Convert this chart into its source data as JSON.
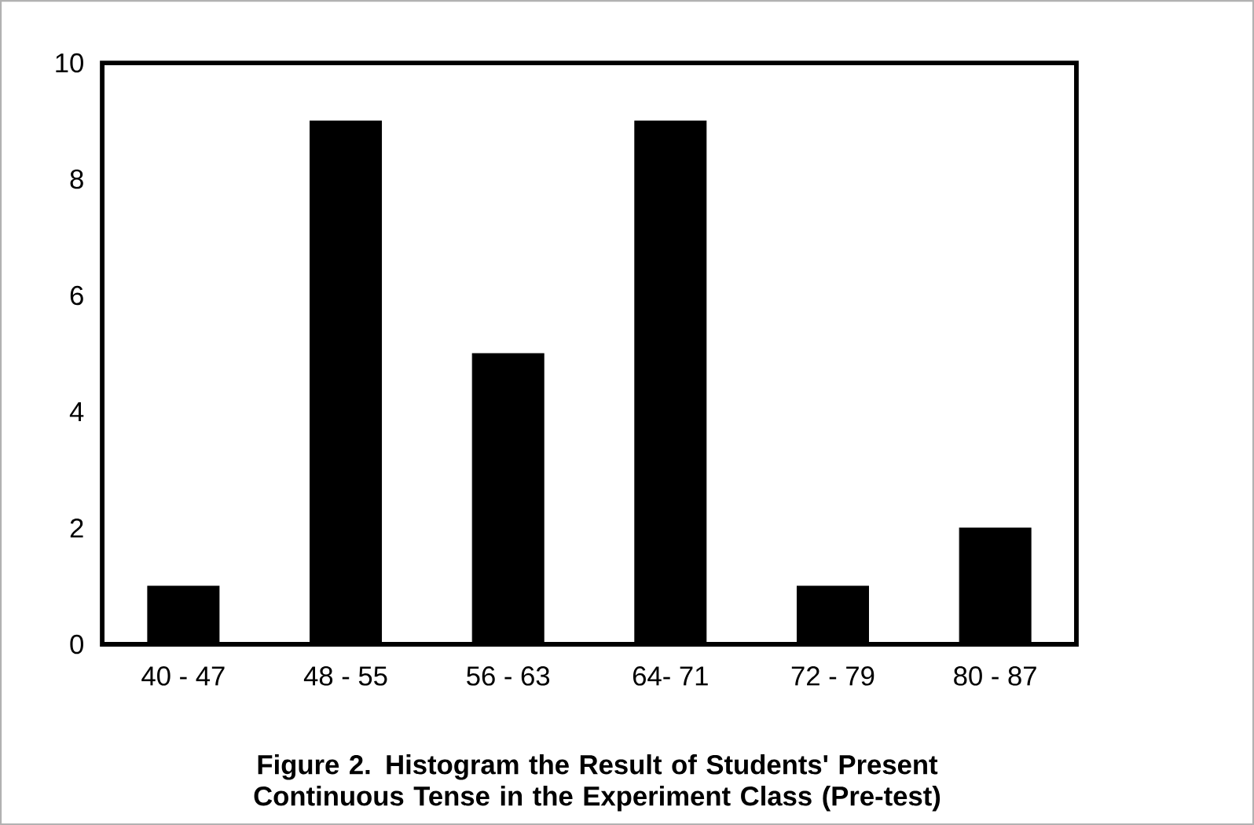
{
  "chart_data": {
    "type": "bar",
    "title": "Figure 2. Histogram the Result of Students' Present Continuous Tense in the Experiment Class (Pre-test)",
    "categories": [
      "40 - 47",
      "48 - 55",
      "56 - 63",
      "64- 71",
      "72 - 79",
      "80 - 87"
    ],
    "values": [
      1,
      9,
      5,
      9,
      1,
      2
    ],
    "color": "#000000",
    "ylim": [
      0,
      10
    ],
    "yticks": [
      0,
      2,
      4,
      6,
      8,
      10
    ],
    "grid": false
  }
}
